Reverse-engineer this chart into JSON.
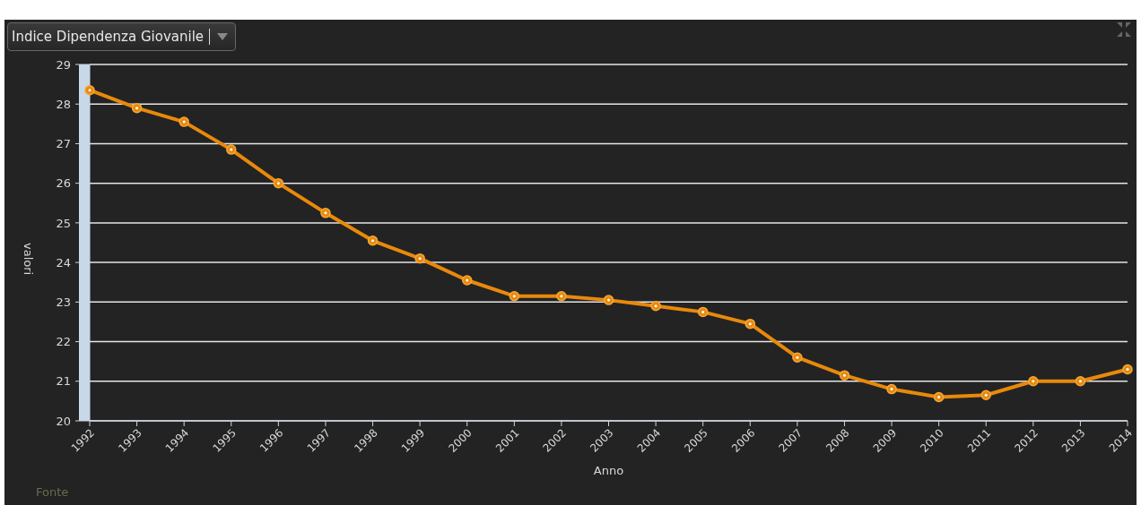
{
  "chart_data": {
    "type": "line",
    "title": "Indice Dipendenza Giovanile",
    "xlabel": "Anno",
    "ylabel": "valori",
    "annotations": [
      "Fonte"
    ],
    "categories": [
      "1992",
      "1993",
      "1994",
      "1995",
      "1996",
      "1997",
      "1998",
      "1999",
      "2000",
      "2001",
      "2002",
      "2003",
      "2004",
      "2005",
      "2006",
      "2007",
      "2008",
      "2009",
      "2010",
      "2011",
      "2012",
      "2013",
      "2014"
    ],
    "series": [
      {
        "color": "#e8890c",
        "values": [
          28.35,
          27.9,
          27.55,
          26.85,
          26.0,
          25.25,
          24.55,
          24.1,
          23.55,
          23.15,
          23.15,
          23.05,
          22.9,
          22.75,
          22.45,
          21.6,
          21.15,
          20.8,
          20.6,
          20.65,
          21.0,
          21.0,
          21.3
        ]
      }
    ],
    "ylim": [
      20,
      29
    ],
    "yticks": [
      20,
      21,
      22,
      23,
      24,
      25,
      26,
      27,
      28,
      29
    ],
    "grid": "y",
    "marker": "circle",
    "line_style": "solid"
  }
}
